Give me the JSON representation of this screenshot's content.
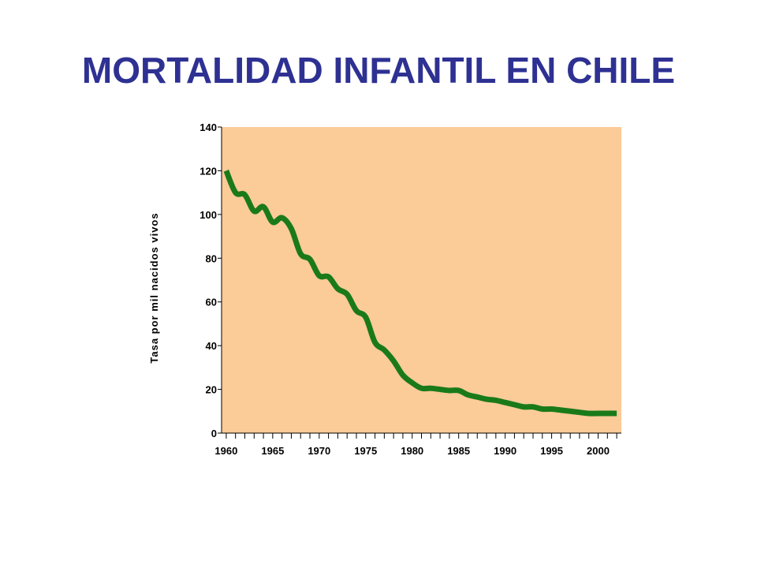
{
  "title": "MORTALIDAD INFANTIL EN CHILE",
  "chart_data": {
    "type": "line",
    "title": "MORTALIDAD INFANTIL EN CHILE",
    "xlabel": "",
    "ylabel": "Tasa por mil nacidos vivos",
    "xlim": [
      1959.5,
      2002.5
    ],
    "ylim": [
      0,
      140
    ],
    "yticks": [
      0,
      20,
      40,
      60,
      80,
      100,
      120,
      140
    ],
    "xticks": [
      1960,
      1965,
      1970,
      1975,
      1980,
      1985,
      1990,
      1995,
      2000
    ],
    "grid": false,
    "legend": "none",
    "colors": {
      "plot_background": "#fbcb98",
      "line": "#1a7a1a",
      "title": "#2e3192"
    },
    "series": [
      {
        "x": [
          1960,
          1961,
          1962,
          1963,
          1964,
          1965,
          1966,
          1967,
          1968,
          1969,
          1970,
          1971,
          1972,
          1973,
          1974,
          1975,
          1976,
          1977,
          1978,
          1979,
          1980,
          1981,
          1982,
          1983,
          1984,
          1985,
          1986,
          1987,
          1988,
          1989,
          1990,
          1991,
          1992,
          1993,
          1994,
          1995,
          1996,
          1997,
          1998,
          1999,
          2000,
          2001,
          2002
        ],
        "values": [
          120,
          110,
          109,
          101.5,
          103.5,
          96.5,
          98.5,
          93.5,
          82,
          79.5,
          72,
          71.5,
          66,
          63.5,
          56,
          53,
          41.5,
          38,
          33,
          26.5,
          23,
          20.5,
          20.5,
          20,
          19.5,
          19.5,
          17.5,
          16.5,
          15.5,
          15,
          14,
          13,
          12,
          12,
          11,
          11,
          10.5,
          10,
          9.5,
          9,
          9,
          9,
          9
        ]
      }
    ]
  }
}
